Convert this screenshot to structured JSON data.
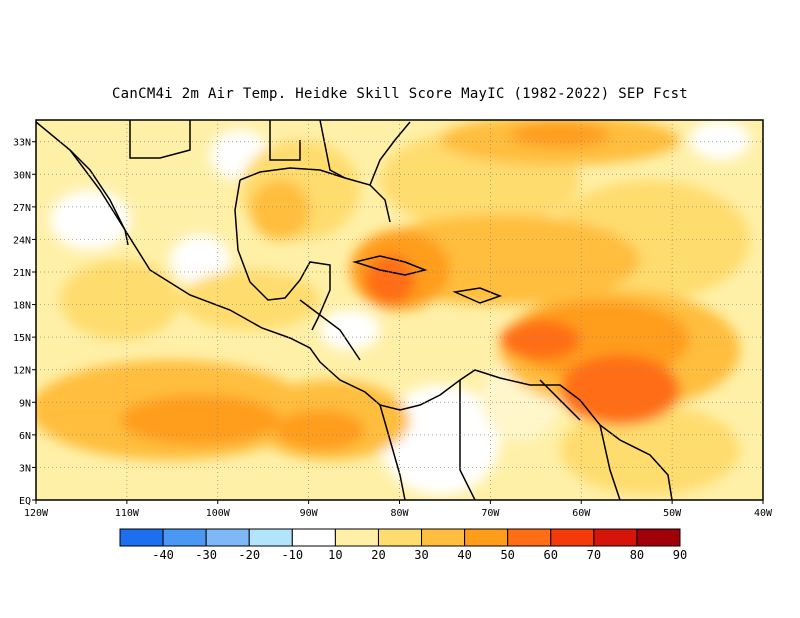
{
  "title": "CanCM4i  2m Air Temp. Heidke Skill Score MayIC (1982-2022) SEP Fcst",
  "map": {
    "lon_range": [
      -120,
      -40
    ],
    "lat_range": [
      0,
      35
    ],
    "lat_ticks": [
      "33N",
      "30N",
      "27N",
      "24N",
      "21N",
      "18N",
      "15N",
      "12N",
      "9N",
      "6N",
      "3N",
      "EQ"
    ],
    "lat_values": [
      33,
      30,
      27,
      24,
      21,
      18,
      15,
      12,
      9,
      6,
      3,
      0
    ],
    "lon_ticks": [
      "120W",
      "110W",
      "100W",
      "90W",
      "80W",
      "70W",
      "60W",
      "50W",
      "40W"
    ],
    "lon_values": [
      -120,
      -110,
      -100,
      -90,
      -80,
      -70,
      -60,
      -50,
      -40
    ],
    "gridlines": "dotted"
  },
  "colorbar": {
    "labels": [
      "-40",
      "-30",
      "-20",
      "-10",
      "10",
      "20",
      "30",
      "40",
      "50",
      "60",
      "70",
      "80",
      "90"
    ],
    "colors": [
      "#1e6ff0",
      "#4a98f4",
      "#7fb8f7",
      "#b2e4fa",
      "#ffffff",
      "#fff0a8",
      "#ffdc6e",
      "#ffbe3e",
      "#ff9d1a",
      "#ff6e14",
      "#f53a0a",
      "#d5150a",
      "#a0000a"
    ]
  }
}
